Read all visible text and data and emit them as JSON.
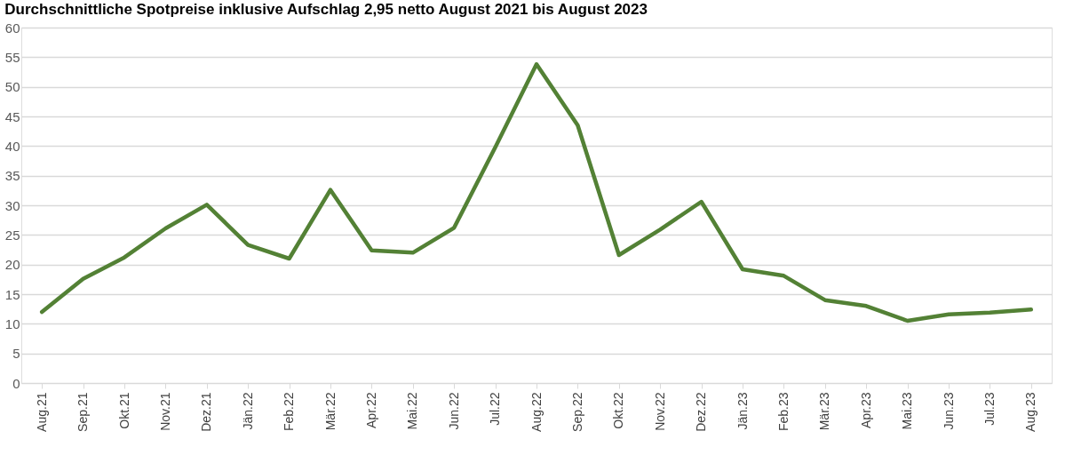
{
  "chart_data": {
    "type": "line",
    "title": "Durchschnittliche Spotpreise inklusive Aufschlag 2,95 netto August 2021 bis August 2023",
    "categories": [
      "Aug.21",
      "Sep.21",
      "Okt.21",
      "Nov.21",
      "Dez.21",
      "Jän.22",
      "Feb.22",
      "Mär.22",
      "Apr.22",
      "Mai.22",
      "Jun.22",
      "Jul.22",
      "Aug.22",
      "Sep.22",
      "Okt.22",
      "Nov.22",
      "Dez.22",
      "Jän.23",
      "Feb.23",
      "Mär.23",
      "Apr.23",
      "Mai.23",
      "Jun.23",
      "Jul.23",
      "Aug.23"
    ],
    "series": [
      {
        "color": "#538135",
        "values": [
          12.0,
          17.6,
          21.2,
          26.1,
          30.1,
          23.3,
          21.0,
          32.6,
          22.4,
          22.0,
          26.2,
          39.8,
          53.8,
          43.5,
          21.6,
          25.9,
          30.6,
          19.2,
          18.1,
          14.0,
          13.0,
          10.5,
          11.6,
          11.9,
          12.4
        ]
      }
    ],
    "ylim": [
      0,
      60
    ],
    "yticks": [
      0,
      5,
      10,
      15,
      20,
      25,
      30,
      35,
      40,
      45,
      50,
      55,
      60
    ],
    "grid": "y",
    "legend": false,
    "marker": "none",
    "line_style": "solid"
  }
}
